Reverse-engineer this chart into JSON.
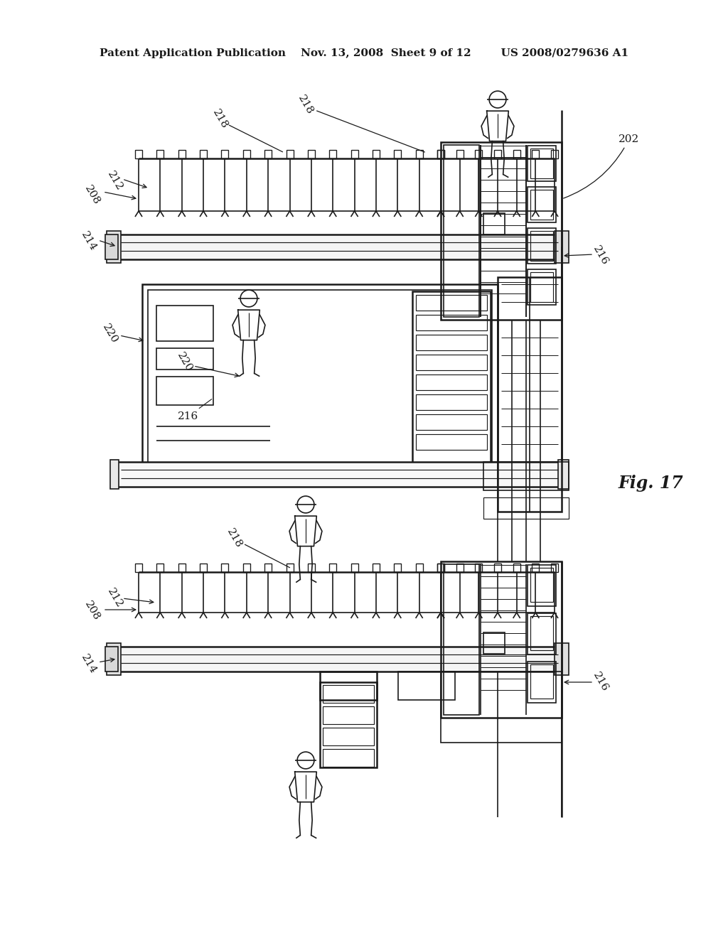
{
  "header": "Patent Application Publication    Nov. 13, 2008  Sheet 9 of 12        US 2008/0279636 A1",
  "fig_label": "Fig. 17",
  "bg_color": "#ffffff",
  "line_color": "#1a1a1a",
  "font_size_header": 11,
  "font_size_label": 11,
  "font_size_fig": 17
}
